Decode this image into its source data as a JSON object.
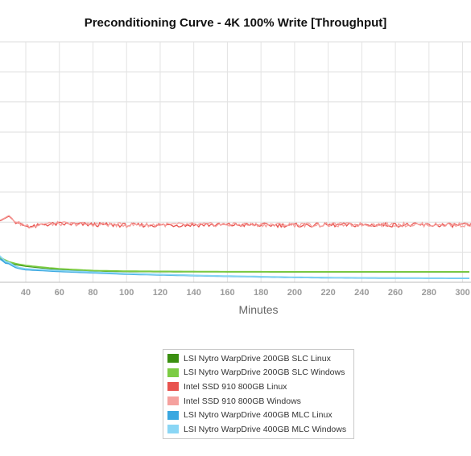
{
  "chart_data": {
    "type": "line",
    "title": "Preconditioning Curve - 4K 100% Write [Throughput]",
    "xlabel": "Minutes",
    "ylabel": "",
    "xlim": [
      0,
      305
    ],
    "ylim": [
      0,
      80000
    ],
    "x_ticks": [
      40,
      60,
      80,
      100,
      120,
      140,
      160,
      180,
      200,
      220,
      240,
      260,
      280,
      300
    ],
    "y_gridlines": [
      10000,
      20000,
      30000,
      40000,
      50000,
      60000,
      70000,
      80000
    ],
    "grid": true,
    "legend_position": "bottom",
    "series": [
      {
        "name": "LSI Nytro WarpDrive 200GB SLC Linux",
        "color": "#3a8f10",
        "x": [
          0,
          25,
          30,
          35,
          40,
          50,
          60,
          80,
          100,
          150,
          200,
          250,
          305
        ],
        "y": [
          10000,
          7800,
          6400,
          5800,
          5400,
          4800,
          4300,
          3800,
          3600,
          3500,
          3450,
          3450,
          3450
        ]
      },
      {
        "name": "LSI Nytro WarpDrive 200GB SLC Windows",
        "color": "#7ccc44",
        "x": [
          0,
          25,
          30,
          35,
          40,
          50,
          60,
          80,
          100,
          150,
          200,
          250,
          305
        ],
        "y": [
          10500,
          8200,
          6800,
          6100,
          5600,
          5000,
          4500,
          3900,
          3700,
          3550,
          3500,
          3500,
          3500
        ]
      },
      {
        "name": "Intel SSD 910 800GB Linux",
        "color": "#e8534f",
        "x": [
          0,
          25,
          30,
          35,
          40,
          45,
          50,
          60,
          80,
          100,
          150,
          200,
          250,
          305
        ],
        "y": [
          19000,
          20500,
          22000,
          19500,
          18800,
          18500,
          19200,
          19400,
          19200,
          19000,
          19100,
          19000,
          19100,
          19000
        ]
      },
      {
        "name": "Intel SSD 910 800GB Windows",
        "color": "#f5a19e",
        "x": [
          0,
          25,
          30,
          35,
          40,
          45,
          50,
          60,
          80,
          100,
          150,
          200,
          250,
          305
        ],
        "y": [
          19200,
          20700,
          22200,
          19700,
          19000,
          18700,
          19400,
          19500,
          19300,
          19100,
          19200,
          19100,
          19200,
          19100
        ]
      },
      {
        "name": "LSI Nytro WarpDrive 400GB MLC Linux",
        "color": "#3aa7e0",
        "x": [
          0,
          25,
          27,
          30,
          33,
          35,
          40,
          60,
          100,
          150,
          200,
          250,
          305
        ],
        "y": [
          8000,
          8000,
          6500,
          6200,
          5200,
          4700,
          4200,
          3600,
          2700,
          2100,
          1600,
          1400,
          1300
        ]
      },
      {
        "name": "LSI Nytro WarpDrive 400GB MLC Windows",
        "color": "#8ad6f5",
        "x": [
          0,
          25,
          27,
          30,
          33,
          35,
          40,
          60,
          100,
          150,
          200,
          250,
          305
        ],
        "y": [
          9000,
          9000,
          7000,
          6600,
          5600,
          5000,
          4500,
          3900,
          2900,
          2200,
          1700,
          1450,
          1350
        ]
      }
    ]
  }
}
